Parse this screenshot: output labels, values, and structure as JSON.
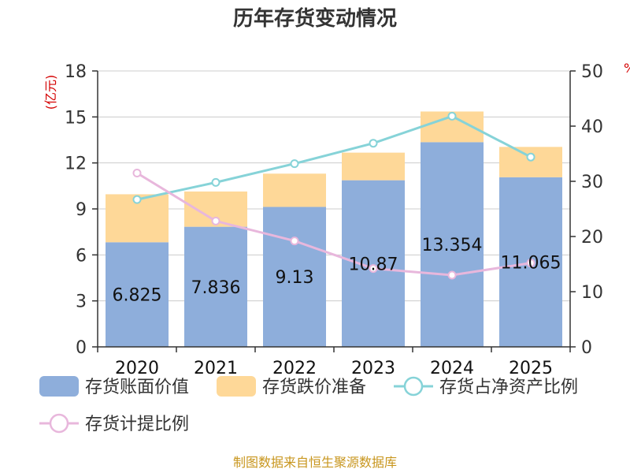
{
  "chart_data": {
    "type": "bar",
    "title": "历年存货变动情况",
    "categories": [
      "2020",
      "2021",
      "2022",
      "2023",
      "2024",
      "2025"
    ],
    "left_axis": {
      "unit": "(亿元)",
      "ylim": [
        0,
        18
      ],
      "ticks": [
        0,
        3,
        6,
        9,
        12,
        15,
        18
      ]
    },
    "right_axis": {
      "unit": "%",
      "ylim": [
        0,
        50
      ],
      "ticks": [
        0,
        10,
        20,
        30,
        40,
        50
      ]
    },
    "series": [
      {
        "name": "存货账面价值",
        "kind": "bar",
        "axis": "left",
        "color": "#8eaedb",
        "values": [
          6.825,
          7.836,
          9.13,
          10.87,
          13.354,
          11.065
        ],
        "labels": [
          "6.825",
          "7.836",
          "9.13",
          "10.87",
          "13.354",
          "11.065"
        ]
      },
      {
        "name": "存货跌价准备",
        "kind": "bar",
        "axis": "left",
        "color": "#fed898",
        "values": [
          3.13,
          2.3,
          2.17,
          1.8,
          2.0,
          1.98
        ]
      },
      {
        "name": "存货占净资产比例",
        "kind": "line",
        "axis": "right",
        "color": "#86d3d8",
        "values": [
          26.7,
          29.8,
          33.2,
          36.9,
          41.8,
          34.4
        ]
      },
      {
        "name": "存货计提比例",
        "kind": "line",
        "axis": "right",
        "color": "#e8b7dc",
        "values": [
          31.5,
          22.8,
          19.2,
          14.2,
          13.0,
          15.2
        ]
      }
    ],
    "source": "制图数据来自恒生聚源数据库"
  }
}
